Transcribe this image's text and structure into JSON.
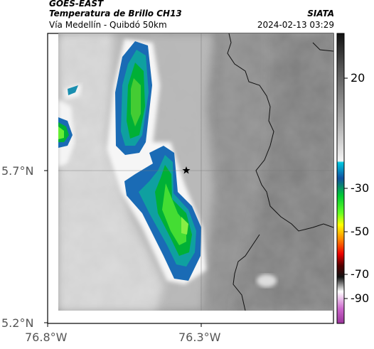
{
  "header": {
    "source": "GOES-EAST",
    "product": "Temperatura de Brillo CH13",
    "route": "Vía Medellín - Quibdó 50km",
    "agency": "SIATA",
    "datetime": "2024-02-13 03:29"
  },
  "map": {
    "lat_labels": [
      "5.7°N",
      "5.2°N"
    ],
    "lon_labels": [
      "76.8°W",
      "76.3°W"
    ],
    "marker": "star-marker"
  },
  "colorbar": {
    "ticks": [
      "20",
      "-30",
      "-50",
      "-70",
      "-90"
    ]
  }
}
